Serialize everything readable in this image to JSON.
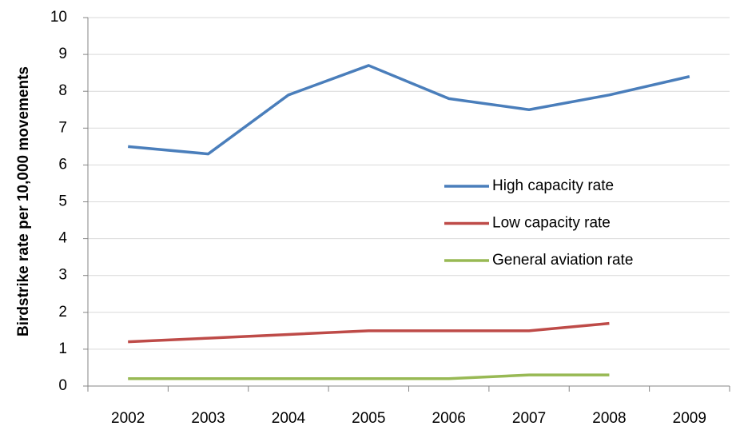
{
  "chart_data": {
    "type": "line",
    "y_label": "Birdstrike rate per 10,000 movements",
    "categories": [
      "2002",
      "2003",
      "2004",
      "2005",
      "2006",
      "2007",
      "2008",
      "2009"
    ],
    "series": [
      {
        "name": "High capacity rate",
        "color": "#4a7ebb",
        "values": [
          6.5,
          6.3,
          7.9,
          8.7,
          7.8,
          7.5,
          7.9,
          8.4
        ]
      },
      {
        "name": "Low capacity rate",
        "color": "#be4b48",
        "values": [
          1.2,
          1.3,
          1.4,
          1.5,
          1.5,
          1.5,
          1.7,
          null
        ]
      },
      {
        "name": "General aviation rate",
        "color": "#98b954",
        "values": [
          0.2,
          0.2,
          0.2,
          0.2,
          0.2,
          0.3,
          0.3,
          null
        ]
      }
    ],
    "ylim": [
      0,
      10
    ],
    "yticks": [
      0,
      1,
      2,
      3,
      4,
      5,
      6,
      7,
      8,
      9,
      10
    ],
    "grid": true,
    "legend": "right"
  }
}
